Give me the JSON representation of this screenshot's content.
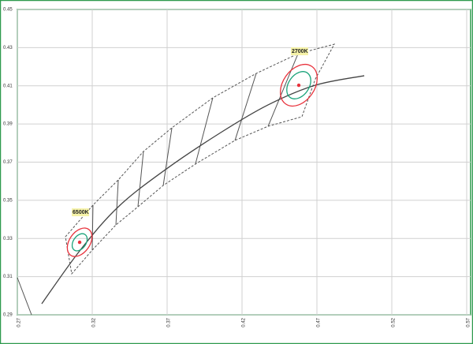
{
  "chart_data": {
    "type": "chromaticity",
    "xlim": [
      0.27,
      0.57
    ],
    "ylim": [
      0.29,
      0.45
    ],
    "xticks": [
      0.27,
      0.32,
      0.37,
      0.42,
      0.47,
      0.52,
      0.57
    ],
    "yticks": [
      0.29,
      0.31,
      0.33,
      0.35,
      0.37,
      0.39,
      0.41,
      0.43,
      0.45
    ],
    "grid": true,
    "locus": {
      "color": "#444444",
      "x": [
        0.2863,
        0.3116,
        0.3374,
        0.3689,
        0.4058,
        0.4374,
        0.4689,
        0.5016
      ],
      "y": [
        0.2958,
        0.3235,
        0.3466,
        0.3661,
        0.3855,
        0.4,
        0.4103,
        0.4153
      ]
    },
    "quadrangles": {
      "color": "#555555",
      "x": [
        0.3021,
        0.3205,
        0.3374,
        0.3542,
        0.3732,
        0.4005,
        0.4295,
        0.4574,
        0.4816,
        0.4689,
        0.46,
        0.4374,
        0.4153,
        0.3889,
        0.3674,
        0.3505,
        0.3358,
        0.32,
        0.3063
      ],
      "y": [
        0.3309,
        0.3475,
        0.3607,
        0.3756,
        0.388,
        0.4037,
        0.4165,
        0.4268,
        0.4318,
        0.4135,
        0.3938,
        0.3888,
        0.3814,
        0.369,
        0.3578,
        0.3466,
        0.3371,
        0.3239,
        0.3115
      ]
    },
    "points": [
      {
        "name": "6500K",
        "x": 0.3116,
        "y": 0.328
      },
      {
        "name": "2700K",
        "x": 0.4579,
        "y": 0.4103
      }
    ]
  }
}
